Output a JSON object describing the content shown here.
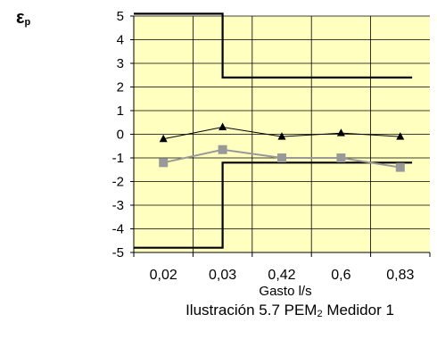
{
  "chart_data": {
    "type": "line",
    "title": "",
    "ylabel_main": "ε",
    "ylabel_sub": "p",
    "xlabel": "Gasto l/s",
    "caption": {
      "before": "Ilustración 5.7 PEM",
      "sub": "2",
      "after": " Medidor 1"
    },
    "categories": [
      "0,02",
      "0,03",
      "0,42",
      "0,6",
      "0,83"
    ],
    "ylim": [
      -5,
      5
    ],
    "yticks": [
      "5",
      "4",
      "3",
      "2",
      "1",
      "0",
      "-1",
      "-2",
      "-3",
      "-4",
      "-5"
    ],
    "grid": true,
    "legend": "none",
    "series": [
      {
        "marker": "triangle",
        "color": "#000000",
        "values": [
          -0.2,
          0.3,
          -0.1,
          0.05,
          -0.1
        ]
      },
      {
        "marker": "square",
        "color": "#999999",
        "values": [
          -1.2,
          -0.65,
          -1.0,
          -1.0,
          -1.4
        ]
      }
    ],
    "limits": [
      {
        "name": "upper",
        "color": "#000000",
        "steps": [
          {
            "from": 0,
            "to": 1.5,
            "value": 5.1
          },
          {
            "from": 1.5,
            "to": 4.7,
            "value": 2.4
          }
        ]
      },
      {
        "name": "lower",
        "color": "#000000",
        "steps": [
          {
            "from": 0,
            "to": 1.5,
            "value": -4.8
          },
          {
            "from": 1.5,
            "to": 4.7,
            "value": -1.2
          }
        ]
      }
    ],
    "colors": {
      "plot_background": "#FFFFC0",
      "grid": "#000000",
      "axis": "#000000"
    }
  }
}
